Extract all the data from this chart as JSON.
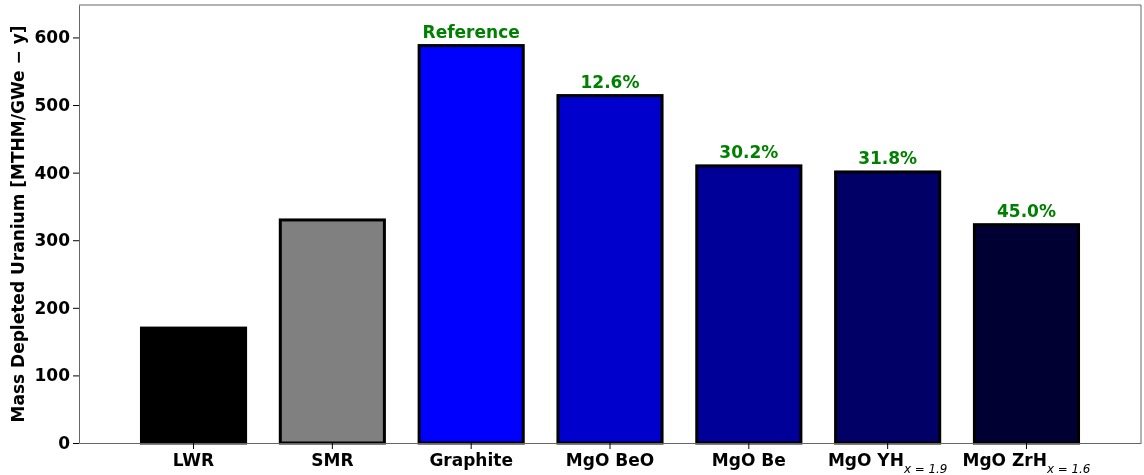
{
  "chart_data": {
    "type": "bar",
    "ylabel": "Mass Depleted Uranium [MTHM/GWe − y]",
    "categories": [
      "LWR",
      "SMR",
      "Graphite",
      "MgO BeO",
      "MgO Be",
      "MgO YH$_{x = 1.9}$",
      "MgO ZrH$_{x = 1.6}$"
    ],
    "values": [
      170,
      330,
      588,
      514,
      410,
      401,
      323
    ],
    "colors": [
      "#000000",
      "#808080",
      "#0000ff",
      "#0000cc",
      "#000099",
      "#000066",
      "#000033"
    ],
    "annotations": [
      {
        "text": "Reference",
        "x": "Graphite",
        "y": 588
      },
      {
        "text": "12.6%",
        "x": "MgO BeO",
        "y": 514
      },
      {
        "text": "30.2%",
        "x": "MgO Be",
        "y": 410
      },
      {
        "text": "31.8%",
        "x": "MgO YH$_{x = 1.9}$",
        "y": 401
      },
      {
        "text": "45.0%",
        "x": "MgO ZrH$_{x = 1.6}$",
        "y": 323
      }
    ],
    "ylim": [
      0,
      648
    ],
    "yticks": [
      0,
      100,
      200,
      300,
      400,
      500,
      600
    ],
    "grid": false
  }
}
